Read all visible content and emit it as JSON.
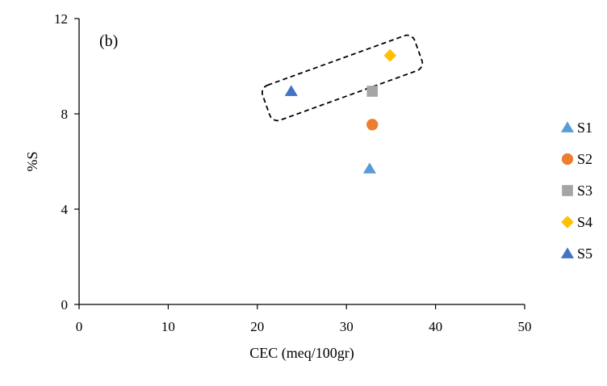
{
  "chart_data": {
    "type": "scatter",
    "panel_label": "(b)",
    "xlabel": "CEC (meq/100gr)",
    "ylabel": "%S",
    "xlim": [
      0,
      50
    ],
    "ylim": [
      0,
      12
    ],
    "x_ticks": [
      "0",
      "10",
      "20",
      "30",
      "40",
      "50"
    ],
    "y_ticks": [
      "0",
      "4",
      "8",
      "12"
    ],
    "grid": false,
    "legend_position": "right",
    "series": [
      {
        "name": "S1",
        "marker": "triangle",
        "color": "#5b9bd5",
        "x": 32.6,
        "y": 5.7
      },
      {
        "name": "S2",
        "marker": "circle",
        "color": "#ed7d31",
        "x": 32.9,
        "y": 7.55
      },
      {
        "name": "S3",
        "marker": "square",
        "color": "#a5a5a5",
        "x": 32.9,
        "y": 8.95
      },
      {
        "name": "S4",
        "marker": "diamond",
        "color": "#ffc000",
        "x": 34.9,
        "y": 10.45
      },
      {
        "name": "S5",
        "marker": "triangle",
        "color": "#4472c4",
        "x": 23.8,
        "y": 8.95
      }
    ],
    "annotations": [
      {
        "type": "dashed-rounded-box",
        "encloses": [
          "S5",
          "S3",
          "S4"
        ]
      }
    ]
  }
}
